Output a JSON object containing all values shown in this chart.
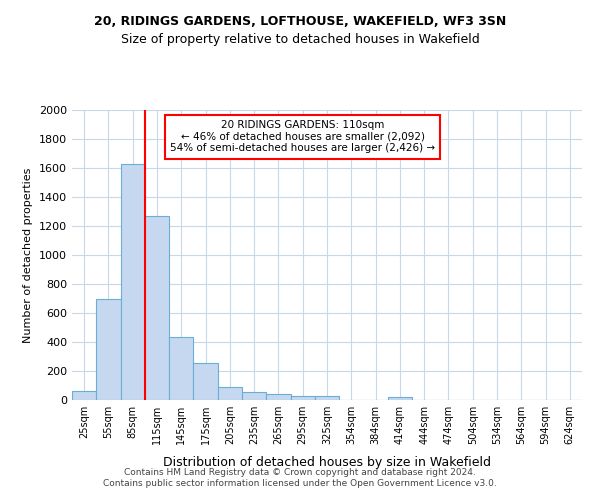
{
  "title1": "20, RIDINGS GARDENS, LOFTHOUSE, WAKEFIELD, WF3 3SN",
  "title2": "Size of property relative to detached houses in Wakefield",
  "xlabel": "Distribution of detached houses by size in Wakefield",
  "ylabel": "Number of detached properties",
  "property_size": 110,
  "annotation_line1": "20 RIDINGS GARDENS: 110sqm",
  "annotation_line2": "← 46% of detached houses are smaller (2,092)",
  "annotation_line3": "54% of semi-detached houses are larger (2,426) →",
  "footer_line1": "Contains HM Land Registry data © Crown copyright and database right 2024.",
  "footer_line2": "Contains public sector information licensed under the Open Government Licence v3.0.",
  "bin_labels": [
    "25sqm",
    "55sqm",
    "85sqm",
    "115sqm",
    "145sqm",
    "175sqm",
    "205sqm",
    "235sqm",
    "265sqm",
    "295sqm",
    "325sqm",
    "354sqm",
    "384sqm",
    "414sqm",
    "444sqm",
    "474sqm",
    "504sqm",
    "534sqm",
    "564sqm",
    "594sqm",
    "624sqm"
  ],
  "bar_values": [
    65,
    695,
    1630,
    1270,
    435,
    255,
    90,
    55,
    40,
    28,
    25,
    0,
    0,
    20,
    0,
    0,
    0,
    0,
    0,
    0,
    0
  ],
  "bar_color": "#c5d8f0",
  "bar_edge_color": "#6aaed6",
  "vline_color": "red",
  "vline_x": 2.5,
  "ylim": [
    0,
    2000
  ],
  "yticks": [
    0,
    200,
    400,
    600,
    800,
    1000,
    1200,
    1400,
    1600,
    1800,
    2000
  ],
  "annotation_box_color": "red",
  "annotation_text_color": "black",
  "grid_color": "#c8d8e8",
  "bg_color": "#ffffff"
}
